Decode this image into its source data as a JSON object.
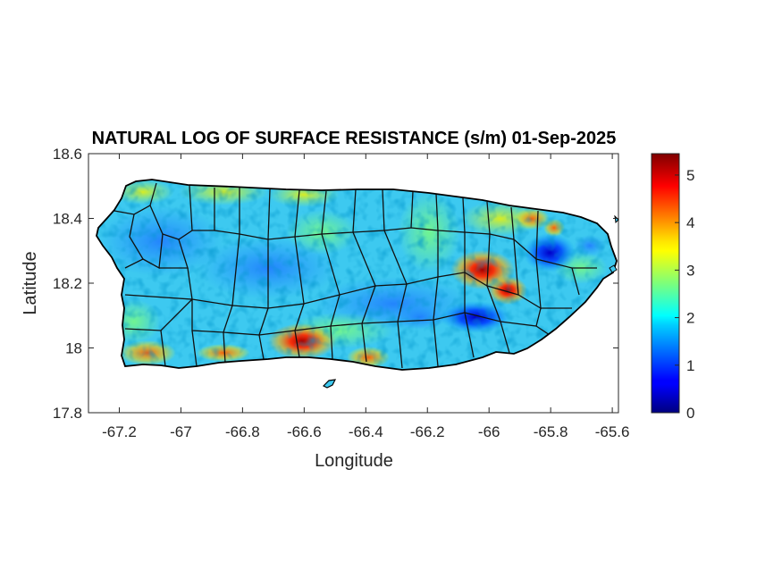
{
  "title": "NATURAL LOG OF SURFACE RESISTANCE (s/m) 01-Sep-2025",
  "map": {
    "xlabel": "Longitude",
    "ylabel": "Latitude",
    "xlim": [
      -67.3,
      -65.58
    ],
    "ylim": [
      17.8,
      18.6
    ],
    "xticks": [
      "-67.2",
      "-67",
      "-66.8",
      "-66.6",
      "-66.4",
      "-66.2",
      "-66",
      "-65.8",
      "-65.6"
    ],
    "xtick_values": [
      -67.2,
      -67.0,
      -66.8,
      -66.6,
      -66.4,
      -66.2,
      -66.0,
      -65.8,
      -65.6
    ],
    "yticks": [
      "17.8",
      "18",
      "18.2",
      "18.4",
      "18.6"
    ],
    "ytick_values": [
      17.8,
      18.0,
      18.2,
      18.4,
      18.6
    ],
    "region_outline": "Puerto Rico with municipality boundaries",
    "colormap": "jet",
    "hotspots": [
      {
        "lon": -66.6,
        "lat": 18.02,
        "value": 5.2
      },
      {
        "lon": -66.05,
        "lat": 18.24,
        "value": 4.5
      },
      {
        "lon": -65.96,
        "lat": 18.18,
        "value": 4.2
      },
      {
        "lon": -67.15,
        "lat": 17.99,
        "value": 4.0
      },
      {
        "lon": -66.42,
        "lat": 17.98,
        "value": 3.8
      },
      {
        "lon": -65.8,
        "lat": 18.29,
        "value": 0.6
      },
      {
        "lon": -66.04,
        "lat": 18.1,
        "value": 0.9
      }
    ]
  },
  "colorbar": {
    "ticks": [
      "0",
      "1",
      "2",
      "3",
      "4",
      "5"
    ],
    "tick_values": [
      0,
      1,
      2,
      3,
      4,
      5
    ],
    "min": 0,
    "max": 5.45
  }
}
